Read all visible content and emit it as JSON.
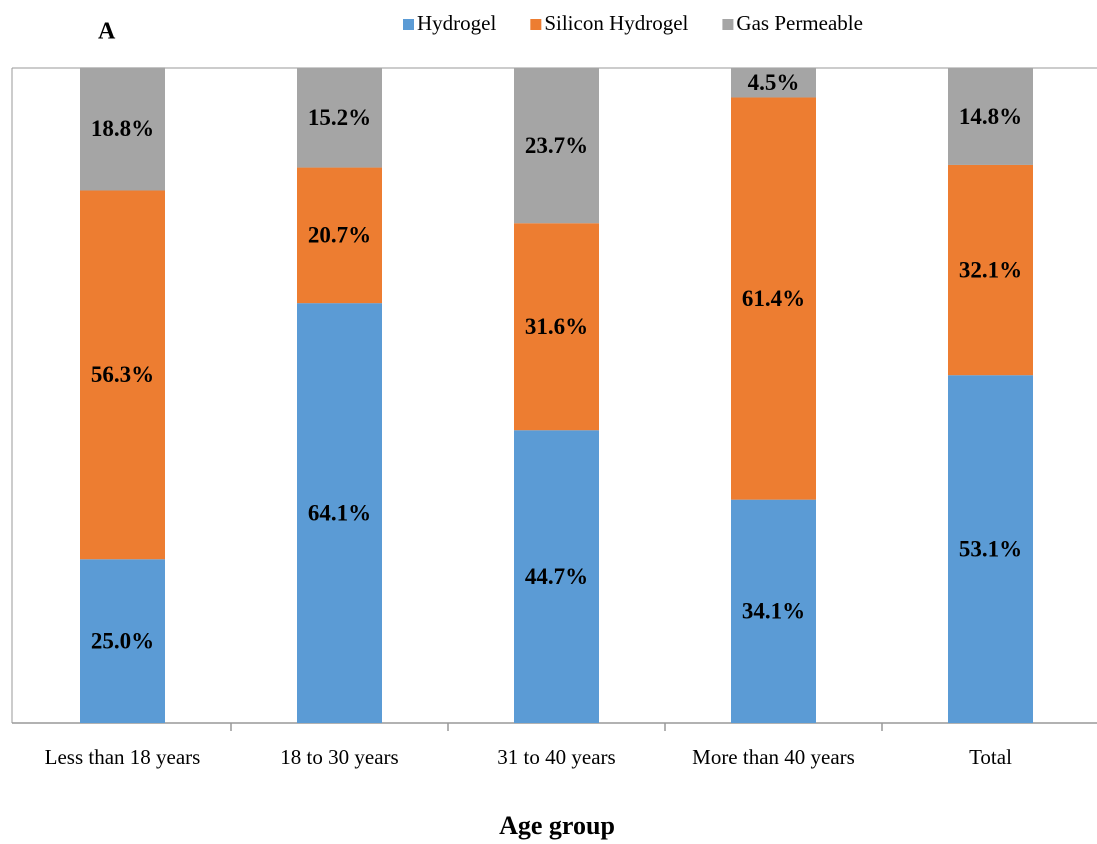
{
  "chart_data": {
    "type": "stacked_bar",
    "panel_label": "A",
    "x_label": "Age group",
    "categories": [
      "Less than 18 years",
      "18 to 30 years",
      "31 to 40 years",
      "More than 40 years",
      "Total"
    ],
    "series": [
      {
        "name": "Hydrogel",
        "color": "#5b9bd5",
        "values": [
          25.0,
          64.1,
          44.7,
          34.1,
          53.1
        ],
        "value_labels": [
          "25.0%",
          "64.1%",
          "44.7%",
          "34.1%",
          "53.1%"
        ]
      },
      {
        "name": "Silicon Hydrogel",
        "color": "#ed7d31",
        "values": [
          56.3,
          20.7,
          31.6,
          61.4,
          32.1
        ],
        "value_labels": [
          "56.3%",
          "20.7%",
          "31.6%",
          "61.4%",
          "32.1%"
        ]
      },
      {
        "name": "Gas Permeable",
        "color": "#a5a5a5",
        "values": [
          18.8,
          15.2,
          23.7,
          4.5,
          14.8
        ],
        "value_labels": [
          "18.8%",
          "15.2%",
          "23.7%",
          "4.5%",
          "14.8%"
        ]
      }
    ],
    "ylim": [
      0,
      100
    ],
    "legend": "top"
  }
}
